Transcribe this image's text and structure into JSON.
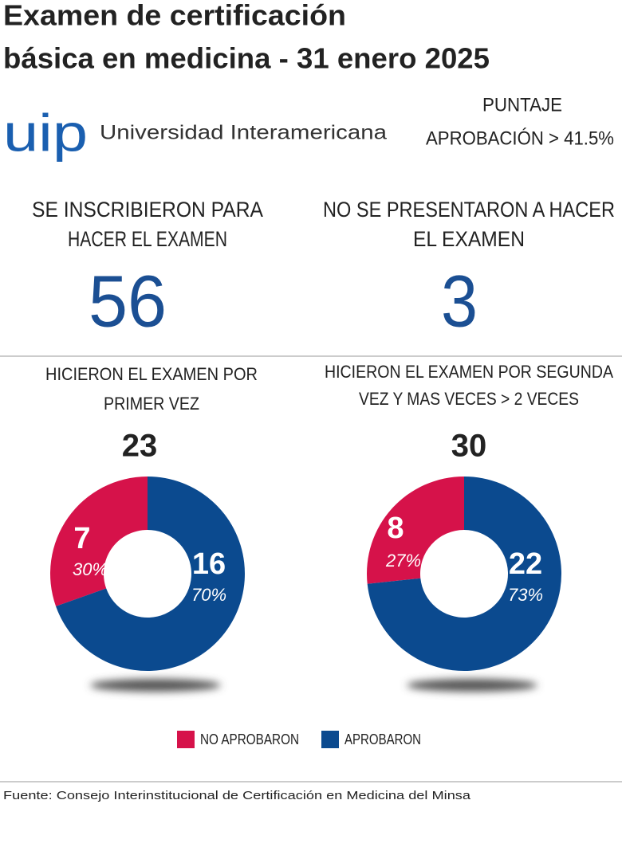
{
  "title": [
    "Examen de certificación",
    "básica en medicina - 31 enero 2025"
  ],
  "logo": {
    "mark": "uip",
    "name": "Universidad Interamericana"
  },
  "threshold": [
    "PUNTAJE",
    "APROBACIÓN > 41.5%"
  ],
  "stats": [
    {
      "label": [
        "SE INSCRIBIERON PARA",
        "HACER EL EXAMEN"
      ],
      "value": 56
    },
    {
      "label": [
        "NO SE PRESENTARON A HACER",
        "EL EXAMEN"
      ],
      "value": 3
    }
  ],
  "chart_data": [
    {
      "type": "pie",
      "title": [
        "HICIERON EL EXAMEN POR",
        "PRIMER VEZ"
      ],
      "total": 23,
      "categories": [
        "NO APROBARON",
        "APROBARON"
      ],
      "values": [
        7,
        16
      ],
      "percent_values": [
        30,
        70
      ],
      "percent_labels": [
        "30%",
        "70%"
      ],
      "colors": [
        "#d6124a",
        "#0b4a8f"
      ]
    },
    {
      "type": "pie",
      "title": [
        "HICIERON EL EXAMEN POR SEGUNDA",
        "VEZ Y MAS VECES > 2 VECES"
      ],
      "total": 30,
      "categories": [
        "NO APROBARON",
        "APROBARON"
      ],
      "values": [
        8,
        22
      ],
      "percent_values": [
        27,
        73
      ],
      "percent_labels": [
        "27%",
        "73%"
      ],
      "colors": [
        "#d6124a",
        "#0b4a8f"
      ]
    }
  ],
  "source": "Fuente: Consejo Interinstitucional de Certificación en Medicina del Minsa"
}
